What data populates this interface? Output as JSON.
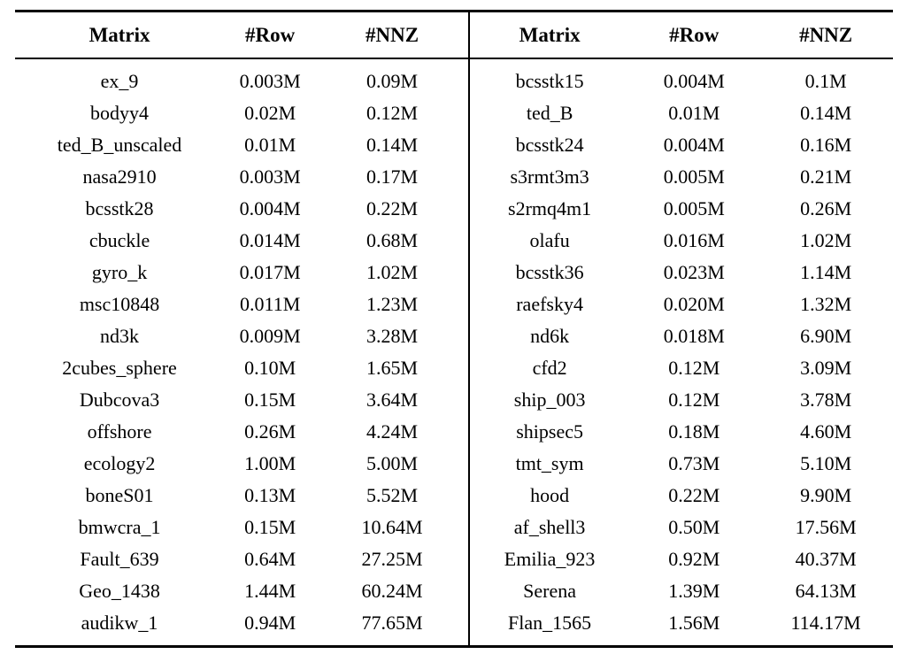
{
  "colors": {
    "background": "#ffffff",
    "text": "#000000",
    "rule": "#000000"
  },
  "table": {
    "headers": [
      "Matrix",
      "#Row",
      "#NNZ",
      "Matrix",
      "#Row",
      "#NNZ"
    ],
    "unit": "M",
    "rows": [
      [
        "ex_9",
        "0.003M",
        "0.09M",
        "bcsstk15",
        "0.004M",
        "0.1M"
      ],
      [
        "bodyy4",
        "0.02M",
        "0.12M",
        "ted_B",
        "0.01M",
        "0.14M"
      ],
      [
        "ted_B_unscaled",
        "0.01M",
        "0.14M",
        "bcsstk24",
        "0.004M",
        "0.16M"
      ],
      [
        "nasa2910",
        "0.003M",
        "0.17M",
        "s3rmt3m3",
        "0.005M",
        "0.21M"
      ],
      [
        "bcsstk28",
        "0.004M",
        "0.22M",
        "s2rmq4m1",
        "0.005M",
        "0.26M"
      ],
      [
        "cbuckle",
        "0.014M",
        "0.68M",
        "olafu",
        "0.016M",
        "1.02M"
      ],
      [
        "gyro_k",
        "0.017M",
        "1.02M",
        "bcsstk36",
        "0.023M",
        "1.14M"
      ],
      [
        "msc10848",
        "0.011M",
        "1.23M",
        "raefsky4",
        "0.020M",
        "1.32M"
      ],
      [
        "nd3k",
        "0.009M",
        "3.28M",
        "nd6k",
        "0.018M",
        "6.90M"
      ],
      [
        "2cubes_sphere",
        "0.10M",
        "1.65M",
        "cfd2",
        "0.12M",
        "3.09M"
      ],
      [
        "Dubcova3",
        "0.15M",
        "3.64M",
        "ship_003",
        "0.12M",
        "3.78M"
      ],
      [
        "offshore",
        "0.26M",
        "4.24M",
        "shipsec5",
        "0.18M",
        "4.60M"
      ],
      [
        "ecology2",
        "1.00M",
        "5.00M",
        "tmt_sym",
        "0.73M",
        "5.10M"
      ],
      [
        "boneS01",
        "0.13M",
        "5.52M",
        "hood",
        "0.22M",
        "9.90M"
      ],
      [
        "bmwcra_1",
        "0.15M",
        "10.64M",
        "af_shell3",
        "0.50M",
        "17.56M"
      ],
      [
        "Fault_639",
        "0.64M",
        "27.25M",
        "Emilia_923",
        "0.92M",
        "40.37M"
      ],
      [
        "Geo_1438",
        "1.44M",
        "60.24M",
        "Serena",
        "1.39M",
        "64.13M"
      ],
      [
        "audikw_1",
        "0.94M",
        "77.65M",
        "Flan_1565",
        "1.56M",
        "114.17M"
      ]
    ]
  }
}
